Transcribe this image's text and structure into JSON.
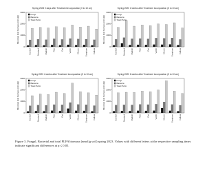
{
  "chart_data": [
    {
      "type": "bar",
      "title": "Spring 2023 0 days after Treatment incorporation (0 to 10 cm)",
      "y_label": "Microbial lipid biomass (nmol/g)",
      "categories": [
        "Control",
        "Mustard",
        "Radish",
        "Rye",
        "Oat",
        "Vetch",
        "Clover",
        "Sorghum",
        "Fallow"
      ],
      "series": [
        {
          "name": "Fungi",
          "color": "#111111",
          "values": [
            120,
            150,
            130,
            160,
            140,
            180,
            150,
            170,
            130
          ]
        },
        {
          "name": "Bacteria",
          "color": "#777777",
          "values": [
            600,
            650,
            620,
            700,
            640,
            720,
            680,
            660,
            610
          ]
        },
        {
          "name": "Total PLFA",
          "color": "#c8c8c8",
          "values": [
            1600,
            1700,
            1650,
            1750,
            1680,
            1900,
            1720,
            1800,
            1550
          ]
        }
      ],
      "ylim": [
        0,
        3000
      ],
      "yticks": [
        0,
        1000,
        2000,
        3000
      ],
      "legend": "upper-left"
    },
    {
      "type": "bar",
      "title": "Spring 2023 2 weeks after Treatment incorporation (0 to 10 cm)",
      "y_label": "Microbial lipid biomass (nmol/g)",
      "categories": [
        "Control",
        "Mustard",
        "Radish",
        "Rye",
        "Oat",
        "Vetch",
        "Clover",
        "Sorghum",
        "Fallow"
      ],
      "series": [
        {
          "name": "Fungi",
          "color": "#111111",
          "values": [
            140,
            300,
            160,
            180,
            170,
            200,
            190,
            210,
            150
          ]
        },
        {
          "name": "Bacteria",
          "color": "#777777",
          "values": [
            650,
            800,
            700,
            720,
            690,
            760,
            740,
            770,
            640
          ]
        },
        {
          "name": "Total PLFA",
          "color": "#c8c8c8",
          "values": [
            1700,
            2300,
            1800,
            1900,
            1850,
            2000,
            1950,
            2100,
            1650
          ]
        }
      ],
      "ylim": [
        0,
        3000
      ],
      "yticks": [
        0,
        1000,
        2000,
        3000
      ],
      "legend": "upper-left"
    },
    {
      "type": "bar",
      "title": "Spring 2023 4 weeks after Treatment incorporation (0 to 10 cm)",
      "y_label": "Microbial lipid biomass (nmol/g)",
      "categories": [
        "Control",
        "Mustard",
        "Radish",
        "Rye",
        "Oat",
        "Vetch",
        "Clover",
        "Sorghum",
        "Fallow"
      ],
      "series": [
        {
          "name": "Fungi",
          "color": "#111111",
          "values": [
            130,
            160,
            150,
            200,
            170,
            380,
            190,
            180,
            140
          ]
        },
        {
          "name": "Bacteria",
          "color": "#777777",
          "values": [
            620,
            680,
            660,
            720,
            700,
            900,
            730,
            710,
            630
          ]
        },
        {
          "name": "Total PLFA",
          "color": "#c8c8c8",
          "values": [
            1500,
            1650,
            1600,
            1800,
            1700,
            2600,
            1850,
            1750,
            1550
          ]
        }
      ],
      "ylim": [
        0,
        3000
      ],
      "yticks": [
        0,
        1000,
        2000,
        3000
      ],
      "legend": "upper-left"
    },
    {
      "type": "bar",
      "title": "Spring 2023 6 weeks after Treatment incorporation (0 to 10 cm)",
      "y_label": "Microbial lipid biomass (nmol/g)",
      "categories": [
        "Control",
        "Mustard",
        "Radish",
        "Rye",
        "Oat",
        "Vetch",
        "Clover",
        "Sorghum",
        "Fallow"
      ],
      "series": [
        {
          "name": "Fungi",
          "color": "#111111",
          "values": [
            150,
            170,
            160,
            190,
            180,
            200,
            420,
            190,
            150
          ]
        },
        {
          "name": "Bacteria",
          "color": "#777777",
          "values": [
            680,
            700,
            690,
            740,
            720,
            760,
            950,
            730,
            660
          ]
        },
        {
          "name": "Total PLFA",
          "color": "#c8c8c8",
          "values": [
            1750,
            1800,
            1780,
            1900,
            1850,
            2000,
            2800,
            1900,
            1700
          ]
        }
      ],
      "ylim": [
        0,
        3000
      ],
      "yticks": [
        0,
        1000,
        2000,
        3000
      ],
      "legend": "upper-left"
    }
  ],
  "caption": "Figure 3. Fungal, Bacterial and total PLFA biomass (nmol/g soil) spring 2023. Values with different letters at the respective sampling times indicate significant differences at p ≤ 0.05."
}
